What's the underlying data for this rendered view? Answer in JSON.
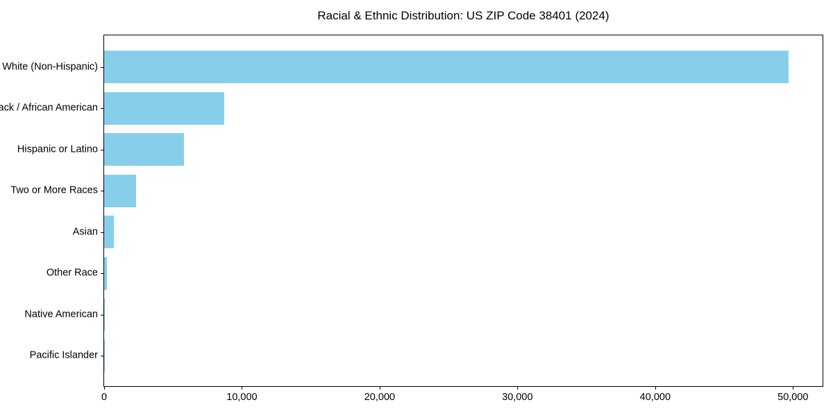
{
  "chart_data": {
    "type": "bar",
    "orientation": "horizontal",
    "title": "Racial & Ethnic Distribution: US ZIP Code 38401 (2024)",
    "xlabel": "",
    "ylabel": "",
    "categories": [
      "White (Non-Hispanic)",
      "Black / African American",
      "Hispanic or Latino",
      "Two or More Races",
      "Asian",
      "Other Race",
      "Native American",
      "Pacific Islander"
    ],
    "values": [
      49700,
      8700,
      5800,
      2300,
      700,
      200,
      30,
      10
    ],
    "xlim": [
      0,
      52150
    ],
    "xticks": [
      0,
      10000,
      20000,
      30000,
      40000,
      50000
    ],
    "xtick_labels": [
      "0",
      "10,000",
      "20,000",
      "30,000",
      "40,000",
      "50,000"
    ],
    "bar_color": "#87CEEB",
    "grid": false,
    "legend_position": "none"
  }
}
